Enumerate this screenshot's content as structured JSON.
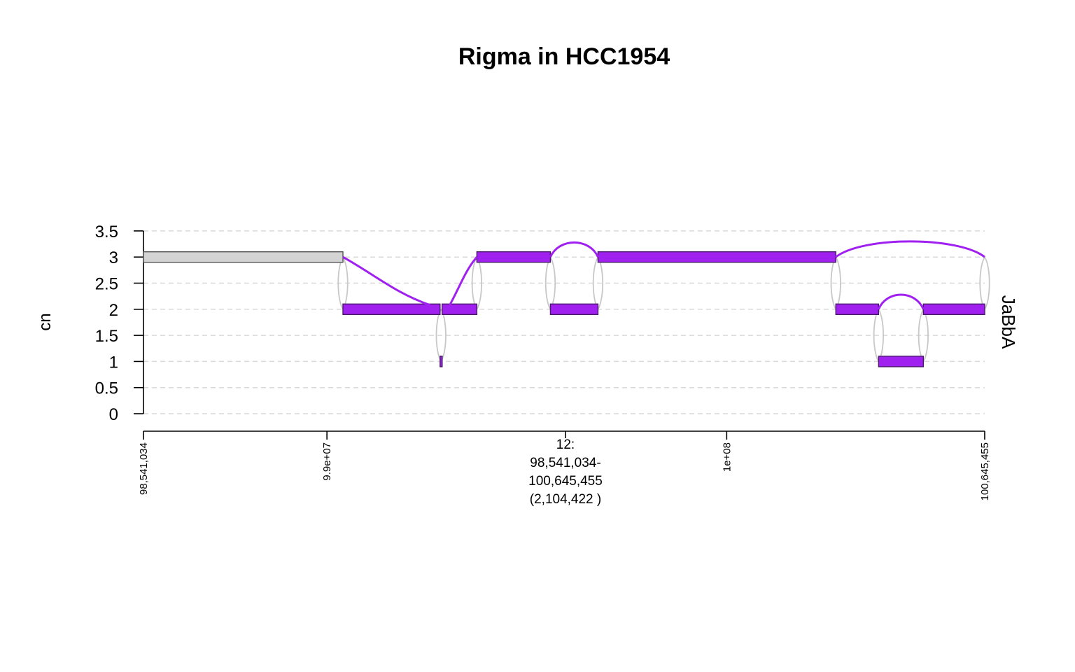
{
  "chart_data": {
    "type": "genome-track",
    "title": "Rigma in HCC1954",
    "ylabel": "cn",
    "track_label": "JaBbA",
    "ylim": [
      0,
      3.5
    ],
    "yticks": [
      "0",
      "0.5",
      "1",
      "1.5",
      "2",
      "2.5",
      "3",
      "3.5"
    ],
    "grid": "horizontal dashed",
    "x_range": [
      98541034,
      100645455
    ],
    "x_ticks": [
      {
        "pos": 98541034,
        "label": "98,541,034"
      },
      {
        "pos": 99000000,
        "label": "9.9e+07"
      },
      {
        "pos": 100000000,
        "label": "1e+08"
      },
      {
        "pos": 100645455,
        "label": "100,645,455"
      }
    ],
    "region_label": [
      "12:",
      "98,541,034-",
      "100,645,455",
      "(2,104,422 )"
    ],
    "segments": [
      {
        "start": 98541034,
        "end": 99040000,
        "cn": 3,
        "color": "#d3d3d3"
      },
      {
        "start": 99040000,
        "end": 99283000,
        "cn": 2,
        "color": "#a020f0"
      },
      {
        "start": 99283000,
        "end": 99288000,
        "cn": 1,
        "color": "#a020f0"
      },
      {
        "start": 99288000,
        "end": 99375000,
        "cn": 2,
        "color": "#a020f0"
      },
      {
        "start": 99375000,
        "end": 99559000,
        "cn": 3,
        "color": "#a020f0"
      },
      {
        "start": 99559000,
        "end": 99678000,
        "cn": 2,
        "color": "#a020f0"
      },
      {
        "start": 99678000,
        "end": 100273000,
        "cn": 3,
        "color": "#a020f0"
      },
      {
        "start": 100273000,
        "end": 100380000,
        "cn": 2,
        "color": "#a020f0"
      },
      {
        "start": 100380000,
        "end": 100492000,
        "cn": 1,
        "color": "#a020f0"
      },
      {
        "start": 100492000,
        "end": 100645455,
        "cn": 2,
        "color": "#a020f0"
      }
    ],
    "alt_edges": [
      {
        "x1": 99040000,
        "y1": 3,
        "x2": 99258000,
        "y2": 2.08,
        "shape": "diagonal"
      },
      {
        "x1": 99305000,
        "y1": 2.05,
        "x2": 99375000,
        "y2": 3,
        "shape": "diagonal"
      },
      {
        "x1": 99559000,
        "y1": 3,
        "x2": 99678000,
        "y2": 3,
        "peak": 3.28,
        "shape": "arc"
      },
      {
        "x1": 100380000,
        "y1": 2,
        "x2": 100492000,
        "y2": 2,
        "peak": 2.28,
        "shape": "arc"
      },
      {
        "x1": 100273000,
        "y1": 3,
        "x2": 100645455,
        "y2": 3,
        "peak": 3.3,
        "shape": "arc"
      }
    ],
    "ref_edges": [
      {
        "x": 99040000,
        "y1": 3,
        "y2": 2
      },
      {
        "x": 99285500,
        "y1": 2,
        "y2": 1
      },
      {
        "x": 99375000,
        "y1": 2,
        "y2": 3
      },
      {
        "x": 99559000,
        "y1": 3,
        "y2": 2
      },
      {
        "x": 99678000,
        "y1": 2,
        "y2": 3
      },
      {
        "x": 100273000,
        "y1": 3,
        "y2": 2
      },
      {
        "x": 100380000,
        "y1": 2,
        "y2": 1
      },
      {
        "x": 100492000,
        "y1": 1,
        "y2": 2
      },
      {
        "x": 100645455,
        "y1": 2,
        "y2": 3
      }
    ],
    "colors": {
      "node": "#a020f0",
      "node_border": "#4a1a6a",
      "node_gray": "#d3d3d3",
      "alt_edge": "#a020f0",
      "ref_edge": "#c8c8c8",
      "grid": "#d9d9d9"
    }
  }
}
